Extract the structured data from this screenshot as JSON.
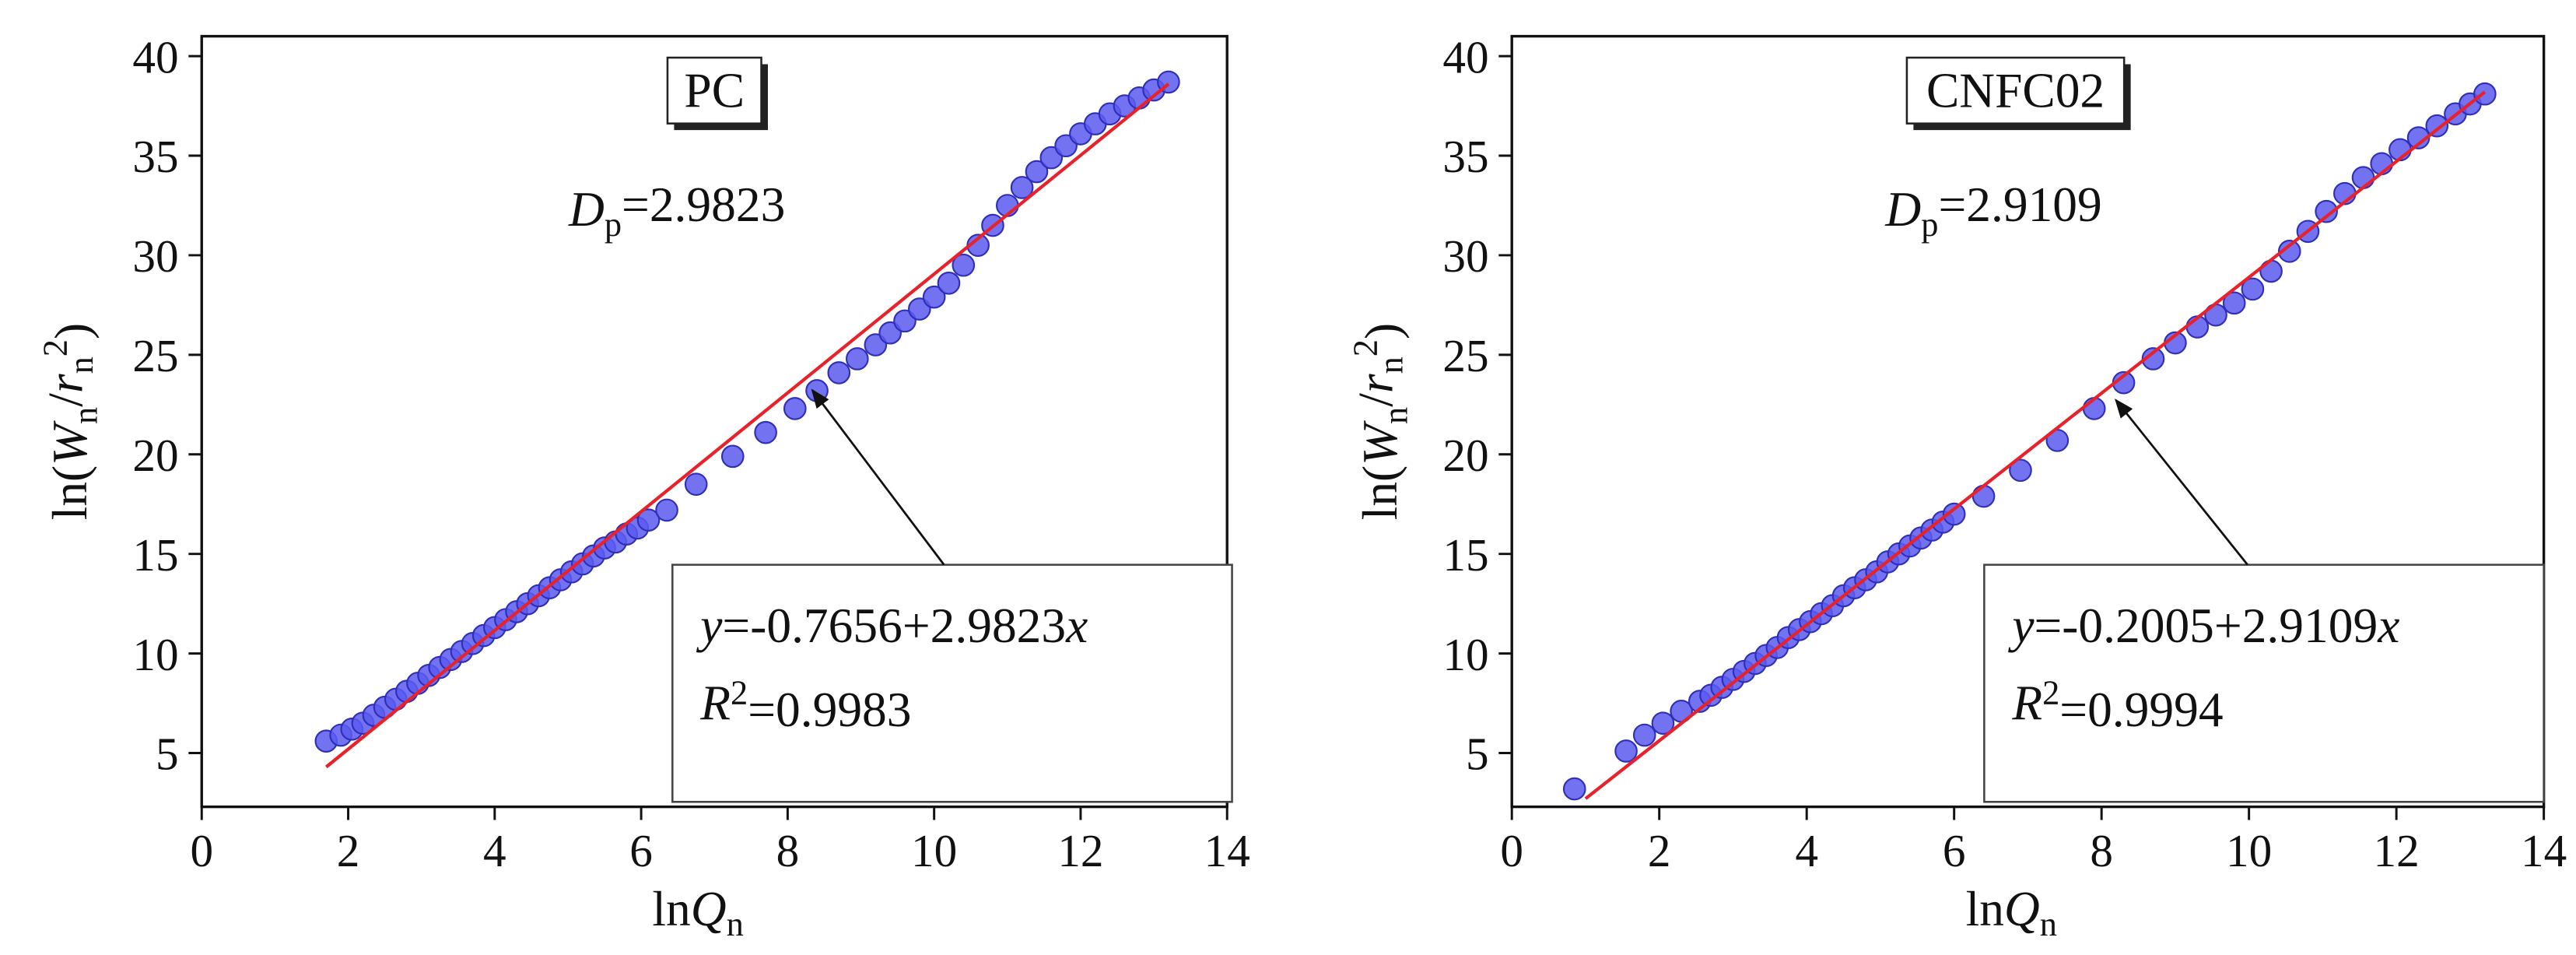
{
  "chart_data": [
    {
      "type": "scatter",
      "title": "PC",
      "annotation": {
        "symbol": "D",
        "subscript": "p",
        "text": "=2.9823"
      },
      "equation": {
        "y": "y",
        "text": "=-0.7656+2.9823",
        "x": "x"
      },
      "r_squared": {
        "symbol": "R",
        "superscript": "2",
        "text": "=0.9983"
      },
      "xlabel": {
        "text": "ln",
        "symbol": "Q",
        "subscript": "n"
      },
      "ylabel": {
        "prefix": "ln(",
        "w": "W",
        "w_sub": "n",
        "slash": "/",
        "r": "r",
        "r_sub": "n",
        "r_sup": "2",
        "suffix": ")"
      },
      "xlim": [
        0,
        14
      ],
      "ylim": [
        2.3,
        41
      ],
      "xticks": [
        0,
        2,
        4,
        6,
        8,
        10,
        12,
        14
      ],
      "yticks": [
        5,
        10,
        15,
        20,
        25,
        30,
        35,
        40
      ],
      "series": [
        {
          "color": "#5b5bf0",
          "x": [
            1.7,
            1.9,
            2.05,
            2.2,
            2.35,
            2.5,
            2.65,
            2.8,
            2.95,
            3.1,
            3.25,
            3.4,
            3.55,
            3.7,
            3.85,
            4.0,
            4.15,
            4.3,
            4.45,
            4.6,
            4.75,
            4.9,
            5.05,
            5.2,
            5.35,
            5.5,
            5.65,
            5.8,
            5.95,
            6.1,
            6.35,
            6.75,
            7.25,
            7.7,
            8.1,
            8.4,
            8.7,
            8.95,
            9.2,
            9.4,
            9.6,
            9.8,
            10.0,
            10.2,
            10.4,
            10.6,
            10.8,
            11.0,
            11.2,
            11.4,
            11.6,
            11.8,
            12.0,
            12.2,
            12.4,
            12.6,
            12.8,
            13.0,
            13.2
          ],
          "values": [
            5.6,
            5.9,
            6.2,
            6.5,
            6.9,
            7.3,
            7.7,
            8.1,
            8.5,
            8.9,
            9.3,
            9.7,
            10.1,
            10.5,
            10.9,
            11.3,
            11.7,
            12.1,
            12.5,
            12.9,
            13.3,
            13.7,
            14.1,
            14.5,
            14.9,
            15.3,
            15.6,
            16.0,
            16.3,
            16.7,
            17.2,
            18.5,
            19.9,
            21.1,
            22.3,
            23.2,
            24.1,
            24.8,
            25.5,
            26.1,
            26.7,
            27.3,
            27.9,
            28.6,
            29.5,
            30.5,
            31.5,
            32.5,
            33.4,
            34.2,
            34.9,
            35.5,
            36.1,
            36.6,
            37.1,
            37.5,
            37.9,
            38.3,
            38.7
          ]
        }
      ],
      "fit_line": {
        "color": "#e8222a",
        "x": [
          1.7,
          13.2
        ],
        "values": [
          4.3,
          38.6
        ]
      }
    },
    {
      "type": "scatter",
      "title": "CNFC02",
      "annotation": {
        "symbol": "D",
        "subscript": "p",
        "text": "=2.9109"
      },
      "equation": {
        "y": "y",
        "text": "=-0.2005+2.9109",
        "x": "x"
      },
      "r_squared": {
        "symbol": "R",
        "superscript": "2",
        "text": "=0.9994"
      },
      "xlabel": {
        "text": "ln",
        "symbol": "Q",
        "subscript": "n"
      },
      "ylabel": {
        "prefix": "ln(",
        "w": "W",
        "w_sub": "n",
        "slash": "/",
        "r": "r",
        "r_sub": "n",
        "r_sup": "2",
        "suffix": ")"
      },
      "xlim": [
        0,
        14
      ],
      "ylim": [
        2.3,
        41
      ],
      "xticks": [
        0,
        2,
        4,
        6,
        8,
        10,
        12,
        14
      ],
      "yticks": [
        5,
        10,
        15,
        20,
        25,
        30,
        35,
        40
      ],
      "series": [
        {
          "color": "#5b5bf0",
          "x": [
            0.85,
            1.55,
            1.8,
            2.05,
            2.3,
            2.55,
            2.7,
            2.85,
            3.0,
            3.15,
            3.3,
            3.45,
            3.6,
            3.75,
            3.9,
            4.05,
            4.2,
            4.35,
            4.5,
            4.65,
            4.8,
            4.95,
            5.1,
            5.25,
            5.4,
            5.55,
            5.7,
            5.85,
            6.0,
            6.4,
            6.9,
            7.4,
            7.9,
            8.3,
            8.7,
            9.0,
            9.3,
            9.55,
            9.8,
            10.05,
            10.3,
            10.55,
            10.8,
            11.05,
            11.3,
            11.55,
            11.8,
            12.05,
            12.3,
            12.55,
            12.8,
            13.0,
            13.2
          ],
          "values": [
            3.2,
            5.1,
            5.9,
            6.5,
            7.1,
            7.6,
            7.9,
            8.3,
            8.7,
            9.1,
            9.5,
            9.9,
            10.3,
            10.8,
            11.2,
            11.6,
            12.0,
            12.4,
            12.9,
            13.3,
            13.7,
            14.1,
            14.6,
            15.0,
            15.4,
            15.8,
            16.2,
            16.6,
            17.0,
            17.9,
            19.2,
            20.7,
            22.3,
            23.6,
            24.8,
            25.6,
            26.4,
            27.0,
            27.6,
            28.3,
            29.2,
            30.2,
            31.2,
            32.2,
            33.1,
            33.9,
            34.6,
            35.3,
            35.9,
            36.5,
            37.1,
            37.6,
            38.1
          ]
        }
      ],
      "fit_line": {
        "color": "#e8222a",
        "x": [
          1.0,
          13.2
        ],
        "values": [
          2.71,
          38.2
        ]
      }
    }
  ]
}
